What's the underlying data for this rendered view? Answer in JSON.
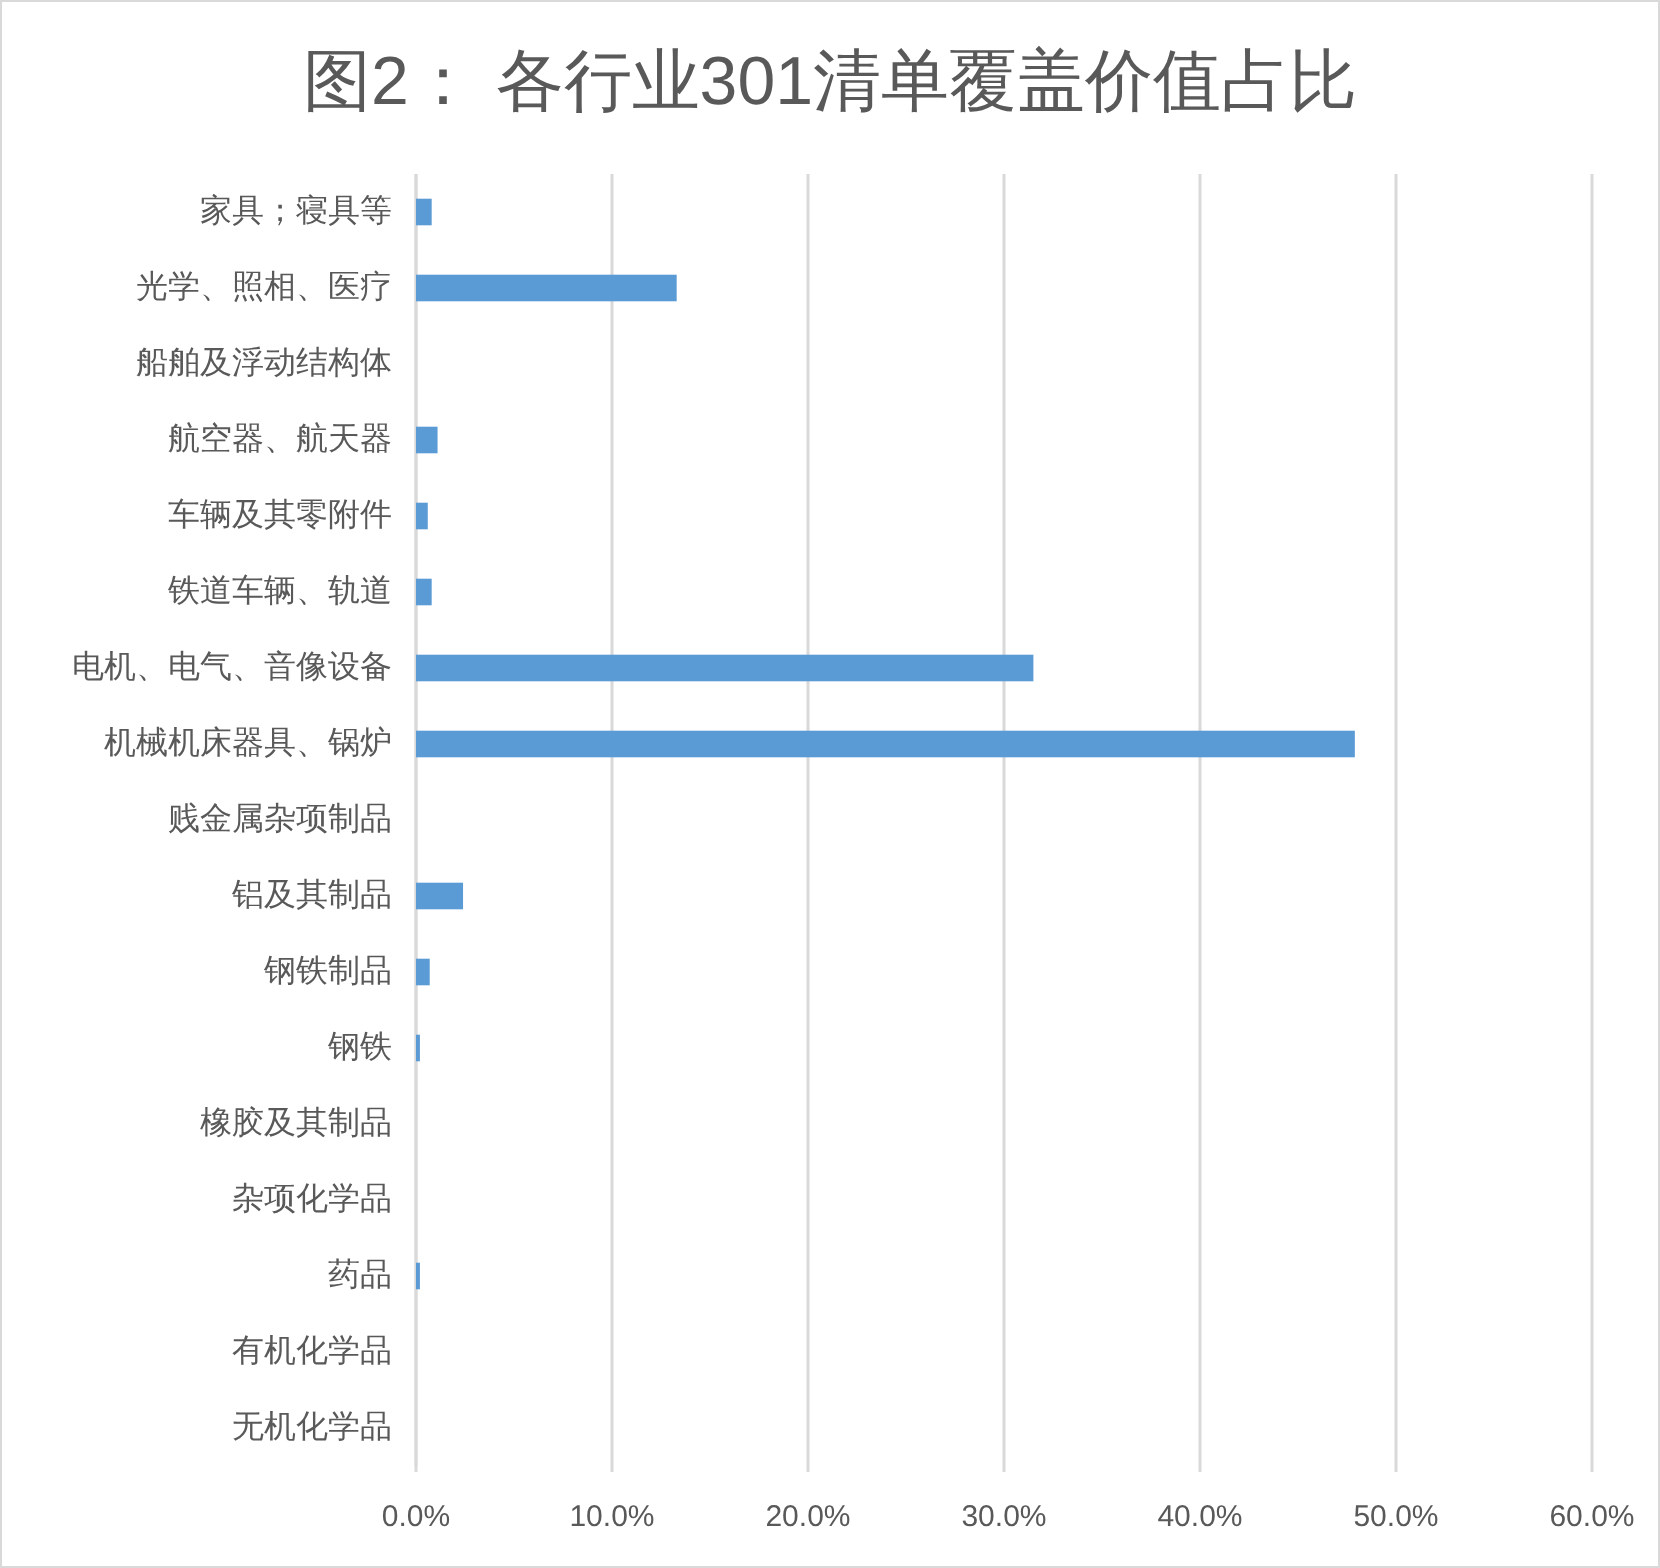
{
  "chart_data": {
    "type": "bar",
    "orientation": "horizontal",
    "title": "图2： 各行业301清单覆盖价值占比",
    "categories": [
      "家具；寝具等",
      "光学、照相、医疗",
      "船舶及浮动结构体",
      "航空器、航天器",
      "车辆及其零附件",
      "铁道车辆、轨道",
      "电机、电气、音像设备",
      "机械机床器具、锅炉",
      "贱金属杂项制品",
      "铝及其制品",
      "钢铁制品",
      "钢铁",
      "橡胶及其制品",
      "杂项化学品",
      "药品",
      "有机化学品",
      "无机化学品"
    ],
    "values": [
      0.8,
      13.3,
      0,
      1.1,
      0.6,
      0.8,
      31.5,
      47.9,
      0,
      2.4,
      0.7,
      0.2,
      0,
      0,
      0.2,
      0,
      0
    ],
    "color": "#5b9bd5",
    "xlim": [
      0,
      60
    ],
    "xticks": [
      {
        "value": 0,
        "label": "0.0%"
      },
      {
        "value": 10,
        "label": "10.0%"
      },
      {
        "value": 20,
        "label": "20.0%"
      },
      {
        "value": 30,
        "label": "30.0%"
      },
      {
        "value": 40,
        "label": "40.0%"
      },
      {
        "value": 50,
        "label": "50.0%"
      },
      {
        "value": 60,
        "label": "60.0%"
      }
    ],
    "grid": "x"
  }
}
